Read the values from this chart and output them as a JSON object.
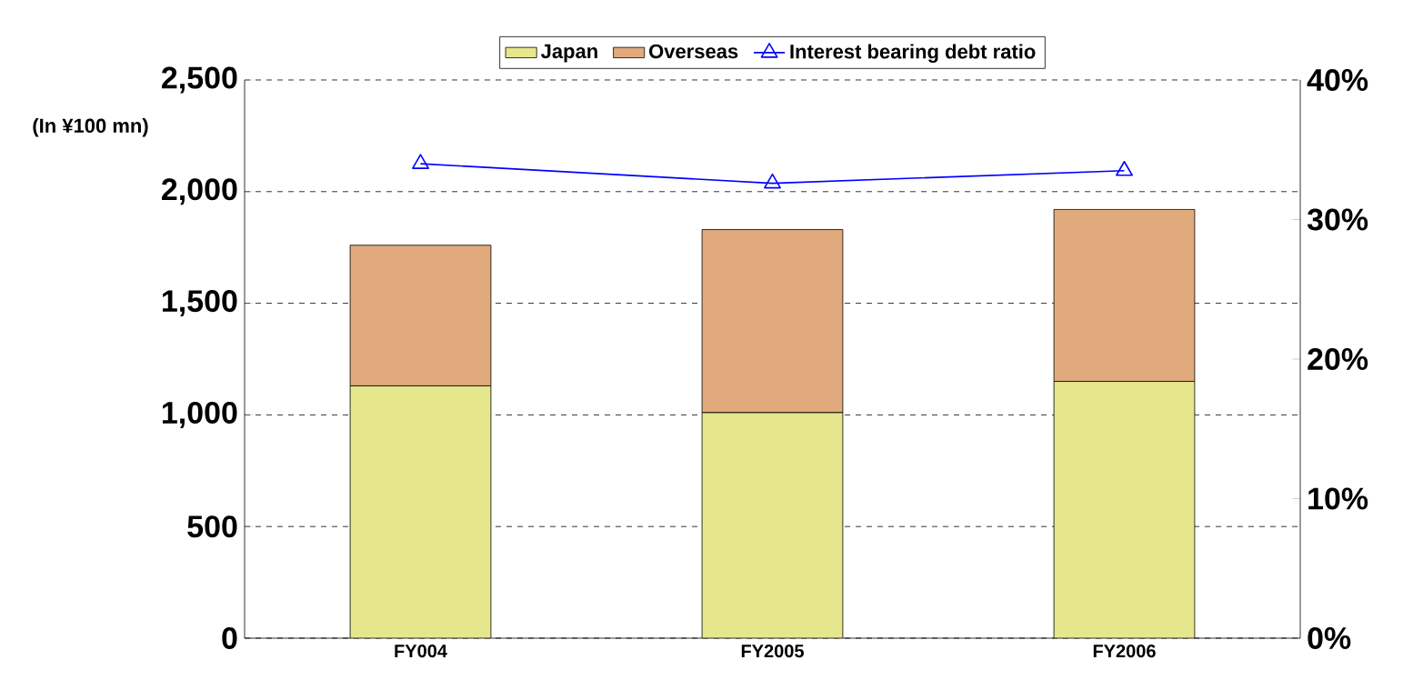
{
  "chart_data": {
    "type": "bar",
    "stacked": true,
    "categories": [
      "FY004",
      "FY2005",
      "FY2006"
    ],
    "ylabel": "(In ¥100 mn)",
    "series": [
      {
        "name": "Japan",
        "color": "#e6e68c",
        "values": [
          1130,
          1010,
          1150
        ]
      },
      {
        "name": "Overseas",
        "color": "#e0aa7c",
        "values": [
          630,
          820,
          770
        ]
      },
      {
        "name": "Interest bearing debt ratio",
        "type": "line",
        "axis": "y2",
        "color": "#0000ff",
        "marker": "triangle",
        "line_style": "solid",
        "values": [
          34.0,
          32.6,
          33.5
        ]
      }
    ],
    "ylim": [
      0,
      2500
    ],
    "yticks": [
      0,
      500,
      {
        "value": 1000,
        "label": "1,000"
      },
      {
        "value": 1500,
        "label": "1,500"
      },
      {
        "value": 2000,
        "label": "2,000"
      },
      {
        "value": 2500,
        "label": "2,500"
      }
    ],
    "y2lim": [
      0,
      40
    ],
    "y2ticks": [
      {
        "value": 0,
        "label": "0%"
      },
      {
        "value": 10,
        "label": "10%"
      },
      {
        "value": 20,
        "label": "20%"
      },
      {
        "value": 30,
        "label": "30%"
      },
      {
        "value": 40,
        "label": "40%"
      }
    ],
    "grid": "y",
    "legend": "top"
  }
}
